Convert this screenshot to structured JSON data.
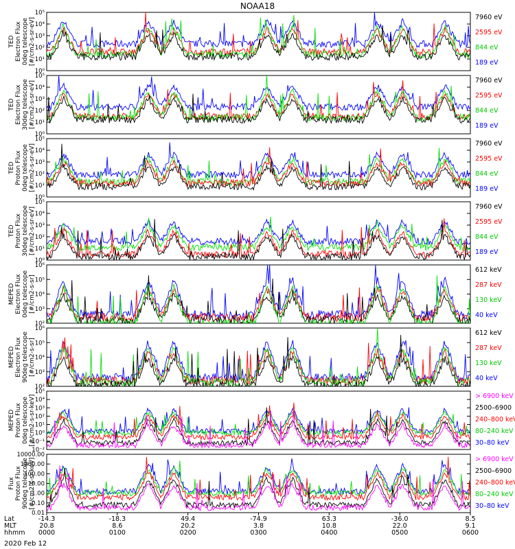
{
  "figure": {
    "title": "NOAA18",
    "date": "2020 Feb 12"
  },
  "chart_data": [
    {
      "type": "line",
      "ylabel": [
        "TED",
        "Electron Flux",
        "0deg telescope",
        "[#/cm2-s-sr-eV]"
      ],
      "ylim": [
        1,
        100000
      ],
      "yscale": "log",
      "yticks": [
        "10⁰",
        "10¹",
        "10²",
        "10³",
        "10⁴",
        "10⁵"
      ],
      "series": [
        {
          "name": "7960 eV",
          "color": "#000000",
          "level": 1.2
        },
        {
          "name": "2595 eV",
          "color": "#ff0000",
          "level": 1.6
        },
        {
          "name": "844 eV",
          "color": "#00e000",
          "level": 1.4
        },
        {
          "name": "189 eV",
          "color": "#0000ff",
          "level": 2.3
        }
      ],
      "peak": 4.6
    },
    {
      "type": "line",
      "ylabel": [
        "TED",
        "Electron Flux",
        "30deg telescope",
        "[#/cm2-s-sr-eV]"
      ],
      "ylim": [
        1,
        100000
      ],
      "yscale": "log",
      "yticks": [
        "10⁰",
        "10¹",
        "10²",
        "10³",
        "10⁴",
        "10⁵"
      ],
      "series": [
        {
          "name": "7960 eV",
          "color": "#000000",
          "level": 1.2
        },
        {
          "name": "2595 eV",
          "color": "#ff0000",
          "level": 1.5
        },
        {
          "name": "844 eV",
          "color": "#00e000",
          "level": 1.4
        },
        {
          "name": "189 eV",
          "color": "#0000ff",
          "level": 2.3
        }
      ],
      "peak": 4.5
    },
    {
      "type": "line",
      "ylabel": [
        "TED",
        "Proton Flux",
        "0deg telescope",
        "[#/cm2-s-sr-eV]"
      ],
      "ylim": [
        1,
        100000
      ],
      "yscale": "log",
      "yticks": [
        "10⁰",
        "10¹",
        "10²",
        "10³",
        "10⁴",
        "10⁵"
      ],
      "series": [
        {
          "name": "7960 eV",
          "color": "#000000",
          "level": 0.9
        },
        {
          "name": "2595 eV",
          "color": "#ff0000",
          "level": 1.2
        },
        {
          "name": "844 eV",
          "color": "#00e000",
          "level": 1.3
        },
        {
          "name": "189 eV",
          "color": "#0000ff",
          "level": 1.9
        }
      ],
      "peak": 4.0
    },
    {
      "type": "line",
      "ylabel": [
        "TED",
        "Proton Flux",
        "30deg telescope",
        "[#/cm2-s-sr-eV]"
      ],
      "ylim": [
        1,
        100000
      ],
      "yscale": "log",
      "yticks": [
        "10⁰",
        "10¹",
        "10²",
        "10³",
        "10⁴",
        "10⁵"
      ],
      "series": [
        {
          "name": "7960 eV",
          "color": "#000000",
          "level": 0.3
        },
        {
          "name": "2595 eV",
          "color": "#ff0000",
          "level": 0.5
        },
        {
          "name": "844 eV",
          "color": "#00e000",
          "level": 1.1
        },
        {
          "name": "189 eV",
          "color": "#0000ff",
          "level": 1.6
        }
      ],
      "peak": 3.6
    },
    {
      "type": "line",
      "ylabel": [
        "MEPED",
        "Electron Flux",
        "0deg telescope",
        "[#/cm2-s-sr]"
      ],
      "ylim": [
        100,
        1000000
      ],
      "yscale": "log",
      "yticks": [
        "10²",
        "10³",
        "10⁴",
        "10⁵",
        "10⁶"
      ],
      "series": [
        {
          "name": "612 keV",
          "color": "#000000",
          "level": 2.2
        },
        {
          "name": "287 keV",
          "color": "#ff0000",
          "level": 2.4
        },
        {
          "name": "130 keV",
          "color": "#00e000",
          "level": 2.0
        },
        {
          "name": "40 keV",
          "color": "#0000ff",
          "level": 2.6
        }
      ],
      "peak": 5.4
    },
    {
      "type": "line",
      "ylabel": [
        "MEPED",
        "Electron Flux",
        "90deg telescope",
        "[#/cm2-s-sr]"
      ],
      "ylim": [
        100,
        1000000
      ],
      "yscale": "log",
      "yticks": [
        "10²",
        "10³",
        "10⁴",
        "10⁵",
        "10⁶"
      ],
      "series": [
        {
          "name": "612 keV",
          "color": "#000000",
          "level": 2.1
        },
        {
          "name": "287 keV",
          "color": "#ff0000",
          "level": 2.4
        },
        {
          "name": "130 keV",
          "color": "#00e000",
          "level": 2.3
        },
        {
          "name": "40 keV",
          "color": "#0000ff",
          "level": 2.6
        }
      ],
      "peak": 5.5
    },
    {
      "type": "line",
      "ylabel": [
        "MEPED",
        "Proton Flux",
        "0deg telescope",
        "[#/cm2-s-sr-keV]"
      ],
      "ylim": [
        0.01,
        100000
      ],
      "yscale": "log",
      "yticks": [
        "10⁻²",
        "10⁻¹",
        "10⁰",
        "10¹",
        "10²",
        "10³",
        "10⁴",
        "10⁵"
      ],
      "series": [
        {
          "name": "> 6900 keV",
          "color": "#ff00ff",
          "level": -1.5
        },
        {
          "name": "2500–6900",
          "color": "#000000",
          "level": -1.2
        },
        {
          "name": "240–800 keV",
          "color": "#ff0000",
          "level": -0.5
        },
        {
          "name": "80–240 keV",
          "color": "#00e000",
          "level": 0.0
        },
        {
          "name": "30–80 keV",
          "color": "#0000ff",
          "level": 0.2
        }
      ],
      "peak": 3.0
    },
    {
      "type": "line",
      "ylabel": [
        "Flux",
        "Proton Flux",
        "90deg telescope",
        "[#/cm2-s-sr-keV]"
      ],
      "ylim": [
        0.01,
        10000
      ],
      "yscale": "log",
      "yticks": [
        "0.01",
        "0.10",
        "1.00",
        "10.00",
        "100.00",
        "1000.00",
        "10000.00"
      ],
      "series": [
        {
          "name": "> 6900 keV",
          "color": "#ff00ff",
          "level": -1.5
        },
        {
          "name": "2500–6900",
          "color": "#000000",
          "level": -1.2
        },
        {
          "name": "240–800 keV",
          "color": "#ff0000",
          "level": -0.4
        },
        {
          "name": "80–240 keV",
          "color": "#00e000",
          "level": 0.0
        },
        {
          "name": "30–80 keV",
          "color": "#0000ff",
          "level": 0.2
        }
      ],
      "peak": 3.0
    }
  ],
  "xaxis": {
    "row_labels": [
      "Lat",
      "MLT",
      "hhmm"
    ],
    "ticks": [
      {
        "lat": "-14.3",
        "mlt": "20.8",
        "hhmm": "0000"
      },
      {
        "lat": "-18.3",
        "mlt": "8.6",
        "hhmm": "0100"
      },
      {
        "lat": "49.4",
        "mlt": "20.2",
        "hhmm": "0200"
      },
      {
        "lat": "-74.9",
        "mlt": "3.8",
        "hhmm": "0300"
      },
      {
        "lat": "63.3",
        "mlt": "10.8",
        "hhmm": "0400"
      },
      {
        "lat": "-36.0",
        "mlt": "22.0",
        "hhmm": "0500"
      },
      {
        "lat": "8.5",
        "mlt": "9.1",
        "hhmm": "0600"
      }
    ]
  }
}
